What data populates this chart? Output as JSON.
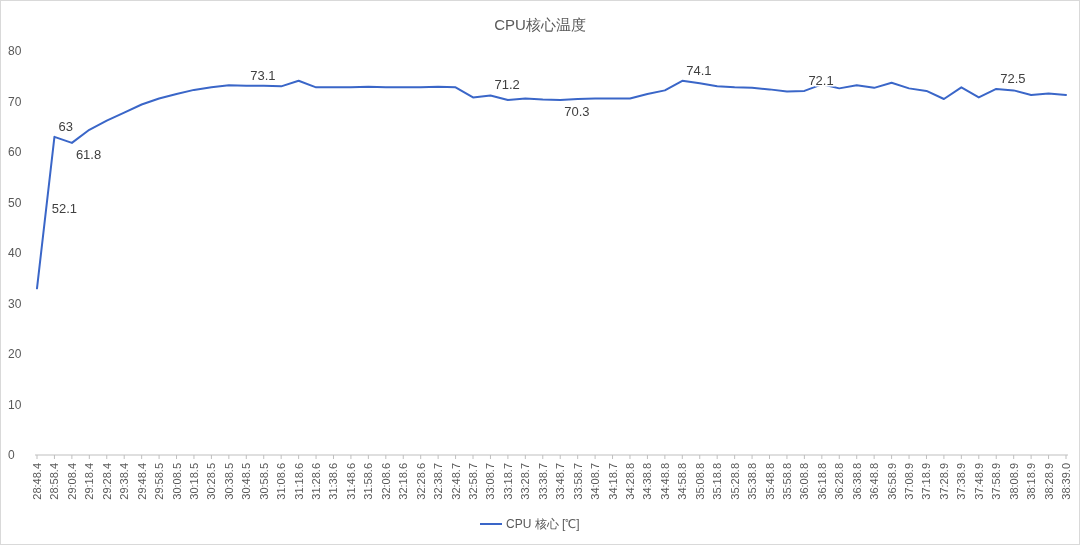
{
  "chart_data": {
    "type": "line",
    "title": "CPU核心温度",
    "categories": [
      "28:48.4",
      "28:58.4",
      "29:08.4",
      "29:18.4",
      "29:28.4",
      "29:38.4",
      "29:48.4",
      "29:58.5",
      "30:08.5",
      "30:18.5",
      "30:28.5",
      "30:38.5",
      "30:48.5",
      "30:58.5",
      "31:08.6",
      "31:18.6",
      "31:28.6",
      "31:38.6",
      "31:48.6",
      "31:58.6",
      "32:08.6",
      "32:18.6",
      "32:28.6",
      "32:38.7",
      "32:48.7",
      "32:58.7",
      "33:08.7",
      "33:18.7",
      "33:28.7",
      "33:38.7",
      "33:48.7",
      "33:58.7",
      "34:08.7",
      "34:18.7",
      "34:28.8",
      "34:38.8",
      "34:48.8",
      "34:58.8",
      "35:08.8",
      "35:18.8",
      "35:28.8",
      "35:38.8",
      "35:48.8",
      "35:58.8",
      "36:08.8",
      "36:18.8",
      "36:28.8",
      "36:38.8",
      "36:48.8",
      "36:58.9",
      "37:08.9",
      "37:18.9",
      "37:28.9",
      "37:38.9",
      "37:48.9",
      "37:58.9",
      "38:08.9",
      "38:18.9",
      "38:28.9",
      "38:39.0"
    ],
    "series": [
      {
        "name": "CPU 核心 [℃]",
        "color": "#3a66c8",
        "values": [
          33,
          63,
          61.8,
          64.4,
          66.2,
          67.8,
          69.4,
          70.6,
          71.5,
          72.3,
          72.8,
          73.2,
          73.1,
          73.1,
          73.0,
          74.1,
          72.8,
          72.8,
          72.8,
          72.9,
          72.8,
          72.8,
          72.8,
          72.9,
          72.8,
          70.8,
          71.2,
          70.3,
          70.6,
          70.4,
          70.3,
          70.5,
          70.6,
          70.6,
          70.6,
          71.5,
          72.2,
          74.1,
          73.6,
          73.0,
          72.8,
          72.7,
          72.4,
          72.0,
          72.1,
          73.4,
          72.6,
          73.2,
          72.7,
          73.7,
          72.6,
          72.1,
          70.5,
          72.8,
          70.8,
          72.5,
          72.2,
          71.3,
          71.6,
          71.3
        ]
      }
    ],
    "ylim": [
      0,
      80
    ],
    "yticks": [
      0,
      10,
      20,
      30,
      40,
      50,
      60,
      70,
      80
    ],
    "legend": "bottom",
    "annotations": [
      "52.1",
      {
        "text": "63",
        "x": "28:58.4",
        "y": 63
      },
      {
        "text": "61.8",
        "x": "29:08.4",
        "y": 61.8
      },
      {
        "text": "73.1",
        "x": "30:48.5",
        "y": 73.1
      },
      {
        "text": "71.2",
        "x": "33:08.7",
        "y": 71.2
      },
      {
        "text": "70.3",
        "x": "33:48.7",
        "y": 70.3
      },
      {
        "text": "74.1",
        "x": "34:58.8",
        "y": 74.1
      },
      {
        "text": "72.1",
        "x": "36:08.8",
        "y": 72.1
      },
      {
        "text": "72.5",
        "x": "37:58.9",
        "y": 72.5
      }
    ]
  }
}
